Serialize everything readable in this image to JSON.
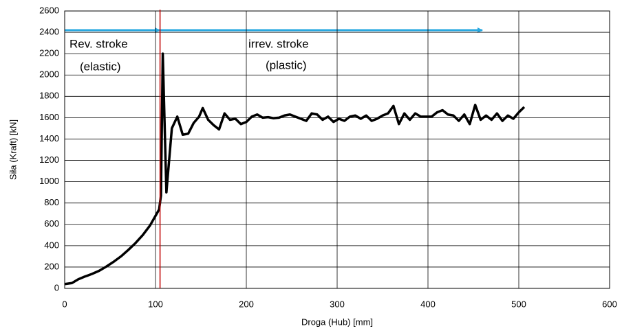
{
  "chart_data": {
    "type": "line",
    "x_label": "Droga (Hub) [mm]",
    "y_label": "Siła (Kraft) [kN]",
    "annotations": [
      "Rev. stroke",
      "(elastic)",
      "irrev. stroke",
      "(plastic)"
    ],
    "x": [
      0,
      8,
      15,
      22,
      30,
      38,
      46,
      54,
      62,
      70,
      78,
      86,
      94,
      100,
      104,
      106,
      108,
      112,
      118,
      124,
      130,
      136,
      142,
      148,
      152,
      158,
      164,
      170,
      176,
      182,
      188,
      194,
      200,
      206,
      212,
      218,
      224,
      230,
      236,
      242,
      248,
      254,
      260,
      266,
      272,
      278,
      284,
      290,
      296,
      302,
      308,
      314,
      320,
      326,
      332,
      338,
      344,
      350,
      356,
      362,
      368,
      374,
      380,
      386,
      392,
      398,
      404,
      410,
      416,
      422,
      428,
      434,
      440,
      446,
      452,
      458,
      464,
      470,
      476,
      482,
      488,
      494,
      500,
      506
    ],
    "series": [
      {
        "color": "#000000",
        "values": [
          40,
          50,
          85,
          110,
          135,
          165,
          205,
          250,
          300,
          360,
          425,
          500,
          590,
          680,
          740,
          870,
          2200,
          900,
          1500,
          1610,
          1440,
          1450,
          1550,
          1610,
          1690,
          1580,
          1530,
          1490,
          1640,
          1580,
          1590,
          1540,
          1560,
          1610,
          1630,
          1600,
          1605,
          1595,
          1600,
          1620,
          1630,
          1610,
          1590,
          1570,
          1640,
          1630,
          1580,
          1610,
          1560,
          1590,
          1570,
          1610,
          1620,
          1590,
          1620,
          1570,
          1590,
          1620,
          1640,
          1710,
          1540,
          1640,
          1580,
          1640,
          1610,
          1610,
          1610,
          1650,
          1670,
          1630,
          1620,
          1570,
          1630,
          1540,
          1720,
          1580,
          1620,
          1580,
          1640,
          1570,
          1620,
          1590,
          1650,
          1700
        ]
      }
    ],
    "reference_line": {
      "x": 105,
      "color": "#c00000"
    },
    "xlim": [
      0,
      600
    ],
    "xticks": [
      0,
      100,
      200,
      300,
      400,
      500,
      600
    ],
    "ylim": [
      0,
      2600
    ],
    "yticks": [
      0,
      200,
      400,
      600,
      800,
      1000,
      1200,
      1400,
      1600,
      1800,
      2000,
      2200,
      2400,
      2600
    ],
    "grid": true
  }
}
